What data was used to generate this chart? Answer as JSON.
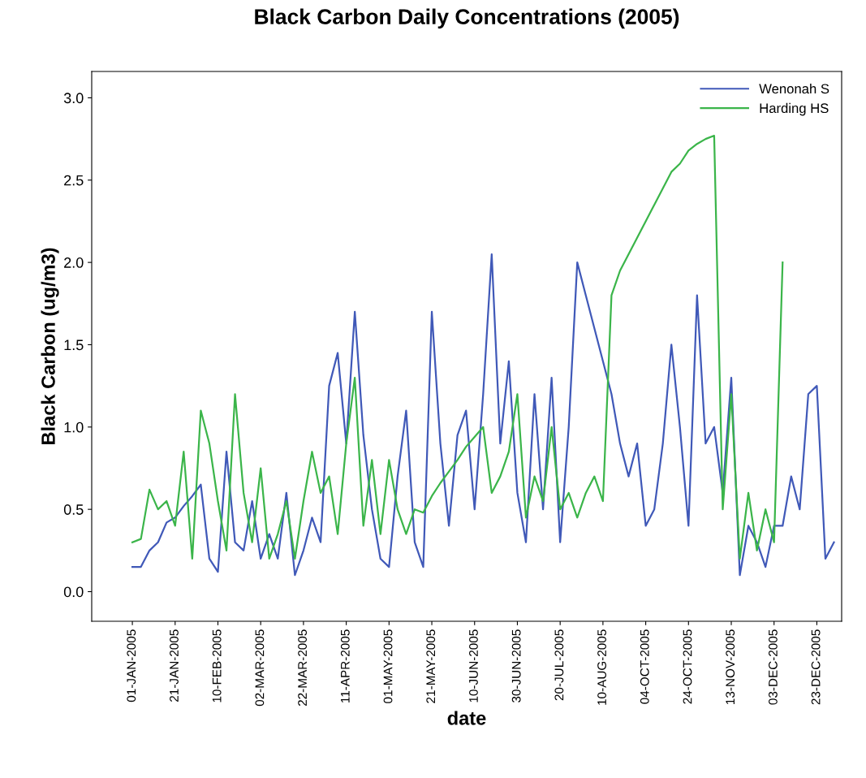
{
  "chart_data": {
    "type": "line",
    "title": "Black Carbon Daily Concentrations (2005)",
    "xlabel": "date",
    "ylabel": "Black Carbon (ug/m3)",
    "categories": [
      "01-JAN-2005",
      null,
      null,
      null,
      null,
      "21-JAN-2005",
      null,
      null,
      null,
      null,
      "10-FEB-2005",
      null,
      null,
      null,
      null,
      "02-MAR-2005",
      null,
      null,
      null,
      null,
      "22-MAR-2005",
      null,
      null,
      null,
      null,
      "11-APR-2005",
      null,
      null,
      null,
      null,
      "01-MAY-2005",
      null,
      null,
      null,
      null,
      "21-MAY-2005",
      null,
      null,
      null,
      null,
      "10-JUN-2005",
      null,
      null,
      null,
      null,
      "30-JUN-2005",
      null,
      null,
      null,
      null,
      "20-JUL-2005",
      null,
      null,
      null,
      null,
      "10-AUG-2005",
      null,
      null,
      null,
      null,
      "04-OCT-2005",
      null,
      null,
      null,
      null,
      "24-OCT-2005",
      null,
      null,
      null,
      null,
      "13-NOV-2005",
      null,
      null,
      null,
      null,
      "03-DEC-2005",
      null,
      null,
      null,
      null,
      "23-DEC-2005",
      null,
      null
    ],
    "series": [
      {
        "name": "Wenonah S",
        "color": "#4059b8",
        "values": [
          0.15,
          0.15,
          0.25,
          0.3,
          0.42,
          0.45,
          0.52,
          0.58,
          0.65,
          0.2,
          0.12,
          0.85,
          0.3,
          0.25,
          0.55,
          0.2,
          0.35,
          0.2,
          0.6,
          0.1,
          0.25,
          0.45,
          0.3,
          1.25,
          1.45,
          0.9,
          1.7,
          0.95,
          0.5,
          0.2,
          0.15,
          0.7,
          1.1,
          0.3,
          0.15,
          1.7,
          0.9,
          0.4,
          0.95,
          1.1,
          0.5,
          1.2,
          2.05,
          0.9,
          1.4,
          0.6,
          0.3,
          1.2,
          0.5,
          1.3,
          0.3,
          1.0,
          2.0,
          1.8,
          1.6,
          1.4,
          1.2,
          0.9,
          0.7,
          0.9,
          0.4,
          0.5,
          0.9,
          1.5,
          1.0,
          0.4,
          1.8,
          0.9,
          1.0,
          0.6,
          1.3,
          0.1,
          0.4,
          0.3,
          0.15,
          0.4,
          0.4,
          0.7,
          0.5,
          1.2,
          1.25,
          0.2,
          0.3
        ]
      },
      {
        "name": "Harding HS",
        "color": "#3bb54a",
        "values": [
          0.3,
          0.32,
          0.62,
          0.5,
          0.55,
          0.4,
          0.85,
          0.2,
          1.1,
          0.9,
          0.55,
          0.25,
          1.2,
          0.6,
          0.3,
          0.75,
          0.2,
          0.35,
          0.55,
          0.2,
          0.55,
          0.85,
          0.6,
          0.7,
          0.35,
          0.9,
          1.3,
          0.4,
          0.8,
          0.35,
          0.8,
          0.5,
          0.35,
          0.5,
          0.48,
          0.58,
          0.66,
          0.73,
          0.8,
          0.88,
          0.94,
          1.0,
          0.6,
          0.7,
          0.85,
          1.2,
          0.45,
          0.7,
          0.55,
          1.0,
          0.5,
          0.6,
          0.45,
          0.6,
          0.7,
          0.55,
          1.8,
          1.95,
          2.05,
          2.15,
          2.25,
          2.35,
          2.45,
          2.55,
          2.6,
          2.68,
          2.72,
          2.75,
          2.77,
          0.5,
          1.2,
          0.2,
          0.6,
          0.25,
          0.5,
          0.3,
          2.0,
          null,
          null,
          null,
          null,
          null,
          null
        ]
      }
    ],
    "ylim": [
      -0.18,
      3.16
    ],
    "yticks": [
      {
        "value": 0,
        "label": "0.0"
      },
      {
        "value": 0.5,
        "label": "0.5"
      },
      {
        "value": 1,
        "label": "1.0"
      },
      {
        "value": 1.5,
        "label": "1.5"
      },
      {
        "value": 2,
        "label": "2.0"
      },
      {
        "value": 2.5,
        "label": "2.5"
      },
      {
        "value": 3,
        "label": "3.0"
      }
    ],
    "legend": "top right",
    "grid": false,
    "marker": "none",
    "line_style": "solid"
  }
}
